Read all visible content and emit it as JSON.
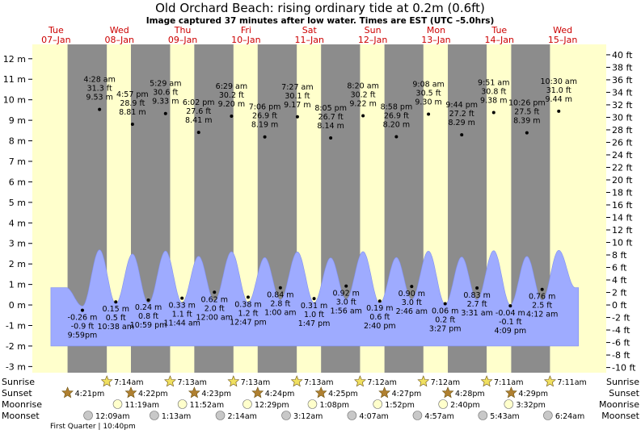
{
  "title": "Old Orchard Beach: rising  ordinary tide at 0.2m (0.6ft)",
  "subtitle": "Image captured 37 minutes after low water. Times are EST (UTC –5.0hrs)",
  "days": [
    {
      "dow": "Tue",
      "date": "07–Jan"
    },
    {
      "dow": "Wed",
      "date": "08–Jan"
    },
    {
      "dow": "Thu",
      "date": "09–Jan"
    },
    {
      "dow": "Fri",
      "date": "10–Jan"
    },
    {
      "dow": "Sat",
      "date": "11–Jan"
    },
    {
      "dow": "Sun",
      "date": "12–Jan"
    },
    {
      "dow": "Mon",
      "date": "13–Jan"
    },
    {
      "dow": "Tue",
      "date": "14–Jan"
    },
    {
      "dow": "Wed",
      "date": "15–Jan"
    }
  ],
  "row_labels": {
    "sunrise": "Sunrise",
    "sunset": "Sunset",
    "moonrise": "Moonrise",
    "moonset": "Moonset"
  },
  "moon_phase": "First Quarter | 10:40pm",
  "colors": {
    "day": "#ffffcc",
    "night": "#8c8c8c",
    "water": "#9eabff",
    "water_edge": "#8090f0",
    "date_red": "#cc0000",
    "star_fill": "#f0e060",
    "sunset_fill": "#b08030",
    "moonrise_fill": "#ffffcc",
    "moonset_fill": "#c8c8c8"
  },
  "chart_data": {
    "type": "area",
    "time_unit": "hours since 07-Jan 00:00 EST",
    "ylabel_left": "m",
    "ylabel_right": "ft",
    "ylim_m": [
      -3.3,
      12.7
    ],
    "yticks_m": [
      -3,
      -2,
      -1,
      0,
      1,
      2,
      3,
      4,
      5,
      6,
      7,
      8,
      9,
      10,
      11,
      12
    ],
    "yticks_ft": [
      -10,
      -8,
      -6,
      -4,
      -2,
      0,
      2,
      4,
      6,
      8,
      10,
      12,
      14,
      16,
      18,
      20,
      22,
      24,
      26,
      28,
      30,
      32,
      34,
      36,
      38,
      40
    ],
    "xlim_hours": [
      3.0,
      220.5
    ],
    "current_height_m": 0.2,
    "extremes": [
      {
        "type": "low",
        "hour": 21.98,
        "time": "9:59pm",
        "m": "-0.26 m",
        "ft": "-0.9 ft",
        "value": -0.26
      },
      {
        "type": "high",
        "hour": 28.47,
        "time": "4:28 am",
        "m": "9.53 m",
        "ft": "31.3 ft",
        "value": 9.53
      },
      {
        "type": "low",
        "hour": 34.63,
        "time": "10:38 am",
        "m": "0.15 m",
        "ft": "0.5 ft",
        "value": 0.15
      },
      {
        "type": "high",
        "hour": 40.95,
        "time": "4:57 pm",
        "m": "8.81 m",
        "ft": "28.9 ft",
        "value": 8.81
      },
      {
        "type": "low",
        "hour": 46.98,
        "time": "10:59 pm",
        "m": "0.24 m",
        "ft": "0.8 ft",
        "value": 0.24
      },
      {
        "type": "high",
        "hour": 53.48,
        "time": "5:29 am",
        "m": "9.33 m",
        "ft": "30.6 ft",
        "value": 9.33
      },
      {
        "type": "low",
        "hour": 59.73,
        "time": "11:44 am",
        "m": "0.33 m",
        "ft": "1.1 ft",
        "value": 0.33
      },
      {
        "type": "high",
        "hour": 66.03,
        "time": "6:02 pm",
        "m": "8.41 m",
        "ft": "27.6 ft",
        "value": 8.41
      },
      {
        "type": "low",
        "hour": 72.0,
        "time": "12:00 am",
        "m": "0.62 m",
        "ft": "2.0 ft",
        "value": 0.62
      },
      {
        "type": "high",
        "hour": 78.48,
        "time": "6:29 am",
        "m": "9.20 m",
        "ft": "30.2 ft",
        "value": 9.2
      },
      {
        "type": "low",
        "hour": 84.78,
        "time": "12:47 pm",
        "m": "0.38 m",
        "ft": "1.2 ft",
        "value": 0.38
      },
      {
        "type": "high",
        "hour": 91.1,
        "time": "7:06 pm",
        "m": "8.19 m",
        "ft": "26.9 ft",
        "value": 8.19
      },
      {
        "type": "low",
        "hour": 97.0,
        "time": "1:00 am",
        "m": "0.84 m",
        "ft": "2.8 ft",
        "value": 0.84
      },
      {
        "type": "high",
        "hour": 103.45,
        "time": "7:27 am",
        "m": "9.17 m",
        "ft": "30.1 ft",
        "value": 9.17
      },
      {
        "type": "low",
        "hour": 109.78,
        "time": "1:47 pm",
        "m": "0.31 m",
        "ft": "1.0 ft",
        "value": 0.31
      },
      {
        "type": "high",
        "hour": 116.08,
        "time": "8:05 pm",
        "m": "8.14 m",
        "ft": "26.7 ft",
        "value": 8.14
      },
      {
        "type": "low",
        "hour": 121.93,
        "time": "1:56 am",
        "m": "0.92 m",
        "ft": "3.0 ft",
        "value": 0.92
      },
      {
        "type": "high",
        "hour": 128.33,
        "time": "8:20 am",
        "m": "9.22 m",
        "ft": "30.2 ft",
        "value": 9.22
      },
      {
        "type": "low",
        "hour": 134.67,
        "time": "2:40 pm",
        "m": "0.19 m",
        "ft": "0.6 ft",
        "value": 0.19
      },
      {
        "type": "high",
        "hour": 140.97,
        "time": "8:58 pm",
        "m": "8.20 m",
        "ft": "26.9 ft",
        "value": 8.2
      },
      {
        "type": "low",
        "hour": 146.77,
        "time": "2:46 am",
        "m": "0.90 m",
        "ft": "3.0 ft",
        "value": 0.9
      },
      {
        "type": "high",
        "hour": 153.13,
        "time": "9:08 am",
        "m": "9.30 m",
        "ft": "30.5 ft",
        "value": 9.3
      },
      {
        "type": "low",
        "hour": 159.45,
        "time": "3:27 pm",
        "m": "0.06 m",
        "ft": "0.2 ft",
        "value": 0.06
      },
      {
        "type": "high",
        "hour": 165.73,
        "time": "9:44 pm",
        "m": "8.29 m",
        "ft": "27.2 ft",
        "value": 8.29
      },
      {
        "type": "low",
        "hour": 171.52,
        "time": "3:31 am",
        "m": "0.83 m",
        "ft": "2.7 ft",
        "value": 0.83
      },
      {
        "type": "high",
        "hour": 177.85,
        "time": "9:51 am",
        "m": "9.38 m",
        "ft": "30.8 ft",
        "value": 9.38
      },
      {
        "type": "low",
        "hour": 184.15,
        "time": "4:09 pm",
        "m": "-0.04 m",
        "ft": "-0.1 ft",
        "value": -0.04
      },
      {
        "type": "high",
        "hour": 190.43,
        "time": "10:26 pm",
        "m": "8.39 m",
        "ft": "27.5 ft",
        "value": 8.39
      },
      {
        "type": "low",
        "hour": 196.2,
        "time": "4:12 am",
        "m": "0.76 m",
        "ft": "2.5 ft",
        "value": 0.76
      },
      {
        "type": "high",
        "hour": 202.5,
        "time": "10:30 am",
        "m": "9.44 m",
        "ft": "31.0 ft",
        "value": 9.44
      }
    ],
    "sunrise": [
      {
        "hour": 31.23,
        "label": "7:14am"
      },
      {
        "hour": 55.22,
        "label": "7:13am"
      },
      {
        "hour": 79.22,
        "label": "7:13am"
      },
      {
        "hour": 103.22,
        "label": "7:13am"
      },
      {
        "hour": 127.2,
        "label": "7:12am"
      },
      {
        "hour": 151.2,
        "label": "7:12am"
      },
      {
        "hour": 175.18,
        "label": "7:11am"
      },
      {
        "hour": 199.18,
        "label": "7:11am"
      }
    ],
    "sunset": [
      {
        "hour": 16.35,
        "label": "4:21pm"
      },
      {
        "hour": 40.37,
        "label": "4:22pm"
      },
      {
        "hour": 64.38,
        "label": "4:23pm"
      },
      {
        "hour": 88.4,
        "label": "4:24pm"
      },
      {
        "hour": 112.42,
        "label": "4:25pm"
      },
      {
        "hour": 136.45,
        "label": "4:27pm"
      },
      {
        "hour": 160.47,
        "label": "4:28pm"
      },
      {
        "hour": 184.48,
        "label": "4:29pm"
      }
    ],
    "moonrise": [
      {
        "hour": 35.32,
        "label": "11:19am"
      },
      {
        "hour": 59.87,
        "label": "11:52am"
      },
      {
        "hour": 84.48,
        "label": "12:29pm"
      },
      {
        "hour": 109.13,
        "label": "1:08pm"
      },
      {
        "hour": 133.87,
        "label": "1:52pm"
      },
      {
        "hour": 158.67,
        "label": "2:40pm"
      },
      {
        "hour": 183.53,
        "label": "3:32pm"
      }
    ],
    "moonset": [
      {
        "hour": 24.15,
        "label": "12:09am"
      },
      {
        "hour": 49.22,
        "label": "1:13am"
      },
      {
        "hour": 74.23,
        "label": "2:14am"
      },
      {
        "hour": 99.2,
        "label": "3:12am"
      },
      {
        "hour": 124.12,
        "label": "4:07am"
      },
      {
        "hour": 148.95,
        "label": "4:57am"
      },
      {
        "hour": 173.72,
        "label": "5:43am"
      },
      {
        "hour": 198.4,
        "label": "6:24am"
      }
    ]
  }
}
